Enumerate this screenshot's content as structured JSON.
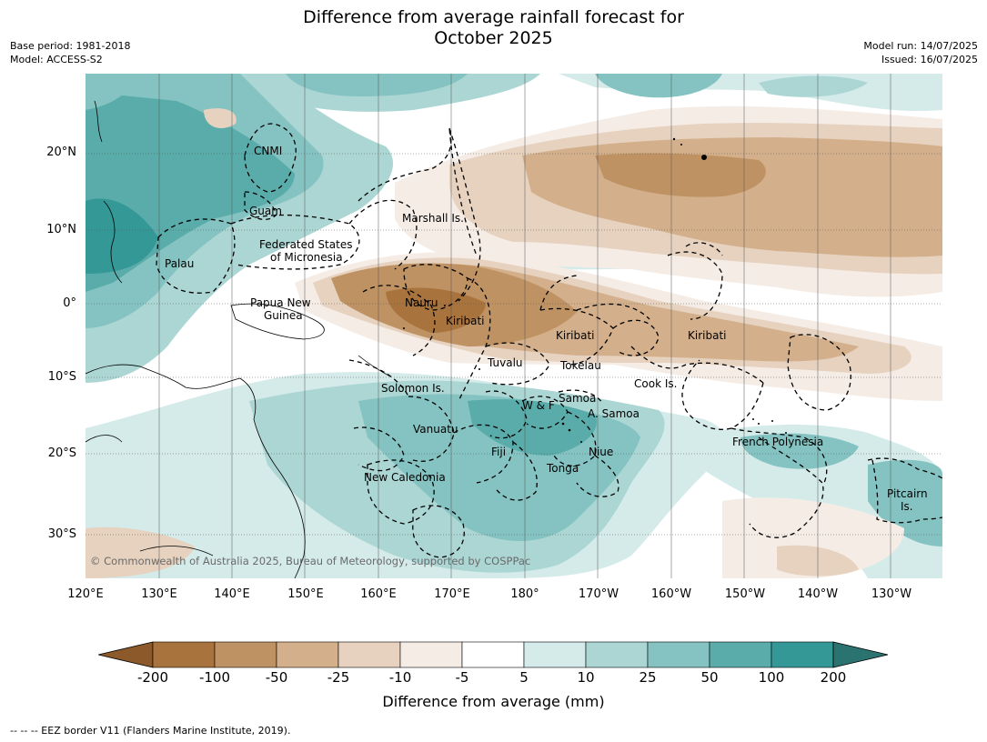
{
  "title": {
    "line1": "Difference from average rainfall forecast for",
    "line2": "October 2025"
  },
  "meta_left": {
    "base_period": "Base period: 1981-2018",
    "model": "Model: ACCESS-S2"
  },
  "meta_right": {
    "model_run": "Model run: 14/07/2025",
    "issued": "Issued: 16/07/2025"
  },
  "map": {
    "lat_labels": [
      "20°N",
      "10°N",
      "0°",
      "10°S",
      "20°S",
      "30°S"
    ],
    "lon_labels": [
      "120°E",
      "130°E",
      "140°E",
      "150°E",
      "160°E",
      "170°E",
      "180°",
      "170°W",
      "160°W",
      "150°W",
      "140°W",
      "130°W"
    ],
    "places": [
      {
        "key": "cnmi",
        "text": "CNMI"
      },
      {
        "key": "guam",
        "text": "Guam"
      },
      {
        "key": "marshall",
        "text": "Marshall Is."
      },
      {
        "key": "fsm1",
        "text": "Federated States"
      },
      {
        "key": "fsm2",
        "text": "of Micronesia"
      },
      {
        "key": "palau",
        "text": "Palau"
      },
      {
        "key": "png1",
        "text": "Papua New"
      },
      {
        "key": "png2",
        "text": "Guinea"
      },
      {
        "key": "nauru",
        "text": "Nauru"
      },
      {
        "key": "kiribati1",
        "text": "Kiribati"
      },
      {
        "key": "kiribati2",
        "text": "Kiribati"
      },
      {
        "key": "kiribati3",
        "text": "Kiribati"
      },
      {
        "key": "tuvalu",
        "text": "Tuvalu"
      },
      {
        "key": "tokelau",
        "text": "Tokelau"
      },
      {
        "key": "cook",
        "text": "Cook Is."
      },
      {
        "key": "solomon",
        "text": "Solomon Is."
      },
      {
        "key": "wf",
        "text": "W & F"
      },
      {
        "key": "samoa",
        "text": "Samoa"
      },
      {
        "key": "asamoa",
        "text": "A. Samoa"
      },
      {
        "key": "vanuatu",
        "text": "Vanuatu"
      },
      {
        "key": "fiji",
        "text": "Fiji"
      },
      {
        "key": "niue",
        "text": "Niue"
      },
      {
        "key": "tonga",
        "text": "Tonga"
      },
      {
        "key": "frpoly",
        "text": "French Polynesia"
      },
      {
        "key": "newcal",
        "text": "New Caledonia"
      },
      {
        "key": "pitcairn1",
        "text": "Pitcairn"
      },
      {
        "key": "pitcairn2",
        "text": "Is."
      }
    ],
    "copyright": "© Commonwealth of Australia 2025, Bureau of Meteorology, supported by COSPPac"
  },
  "colorbar": {
    "labels": [
      "-200",
      "-100",
      "-50",
      "-25",
      "-10",
      "-5",
      "5",
      "10",
      "25",
      "50",
      "100",
      "200"
    ],
    "colors": [
      "#8c5a2a",
      "#a8733d",
      "#bf9263",
      "#d3b08b",
      "#e6d2bf",
      "#f5ece6",
      "#ffffff",
      "#d4ebea",
      "#acd6d4",
      "#84c3c1",
      "#5aacaa",
      "#349896",
      "#2b7370"
    ],
    "title": "Difference from average (mm)"
  },
  "legend_note": "--  --  -- EEZ border V11 (Flanders Marine Institute, 2019)."
}
